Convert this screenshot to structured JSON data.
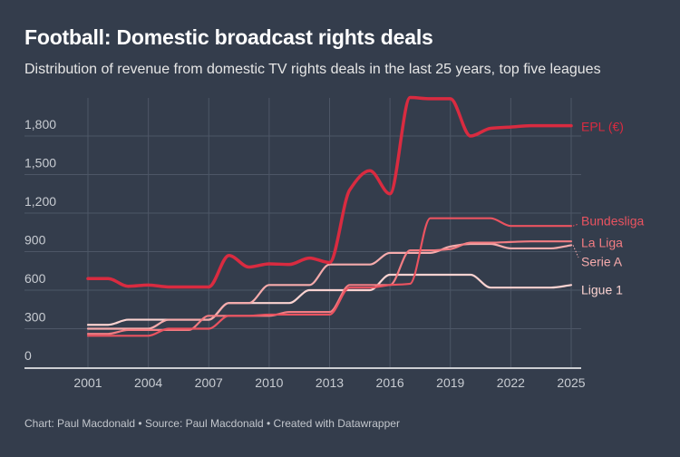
{
  "title": "Football: Domestic broadcast rights deals",
  "subtitle": "Distribution of revenue from domestic TV rights deals in the last 25 years, top five leagues",
  "footer": "Chart: Paul Macdonald • Source: Paul Macdonald • Created with Datawrapper",
  "chart_data": {
    "type": "line",
    "x": [
      2001,
      2002,
      2003,
      2004,
      2005,
      2006,
      2007,
      2008,
      2009,
      2010,
      2011,
      2012,
      2013,
      2014,
      2015,
      2016,
      2017,
      2018,
      2019,
      2020,
      2021,
      2022,
      2023,
      2024,
      2025
    ],
    "x_ticks": [
      "2001",
      "2004",
      "2007",
      "2010",
      "2013",
      "2016",
      "2019",
      "2022",
      "2025"
    ],
    "y_ticks": [
      "0",
      "300",
      "600",
      "900",
      "1,200",
      "1,500",
      "1,800"
    ],
    "ylim": [
      0,
      2100
    ],
    "grid": true,
    "legend": "direct labels at line ends",
    "series": [
      {
        "name": "EPL (€)",
        "color": "#d92b40",
        "values": [
          690,
          690,
          630,
          640,
          625,
          625,
          625,
          870,
          780,
          805,
          800,
          850,
          815,
          1380,
          1530,
          1350,
          2100,
          2090,
          2090,
          1800,
          1860,
          1870,
          1880,
          1880,
          1880
        ]
      },
      {
        "name": "Bundesliga",
        "color": "#ea5360",
        "values": [
          245,
          245,
          245,
          245,
          300,
          300,
          300,
          400,
          400,
          410,
          410,
          410,
          410,
          620,
          620,
          640,
          650,
          1160,
          1160,
          1160,
          1160,
          1100,
          1100,
          1100,
          1100
        ]
      },
      {
        "name": "La Liga",
        "color": "#f27c82",
        "values": [
          260,
          260,
          290,
          290,
          290,
          290,
          400,
          400,
          400,
          400,
          430,
          430,
          430,
          640,
          640,
          640,
          910,
          910,
          920,
          970,
          970,
          975,
          980,
          980,
          980
        ]
      },
      {
        "name": "Serie A",
        "color": "#f6abac",
        "values": [
          300,
          300,
          300,
          300,
          370,
          370,
          370,
          500,
          500,
          640,
          640,
          640,
          800,
          800,
          800,
          890,
          890,
          890,
          940,
          960,
          960,
          925,
          925,
          925,
          950
        ]
      },
      {
        "name": "Ligue 1",
        "color": "#fbd3d1",
        "values": [
          330,
          330,
          370,
          370,
          370,
          370,
          370,
          500,
          500,
          500,
          500,
          600,
          600,
          600,
          600,
          720,
          720,
          720,
          720,
          720,
          620,
          620,
          620,
          620,
          640
        ]
      }
    ]
  }
}
